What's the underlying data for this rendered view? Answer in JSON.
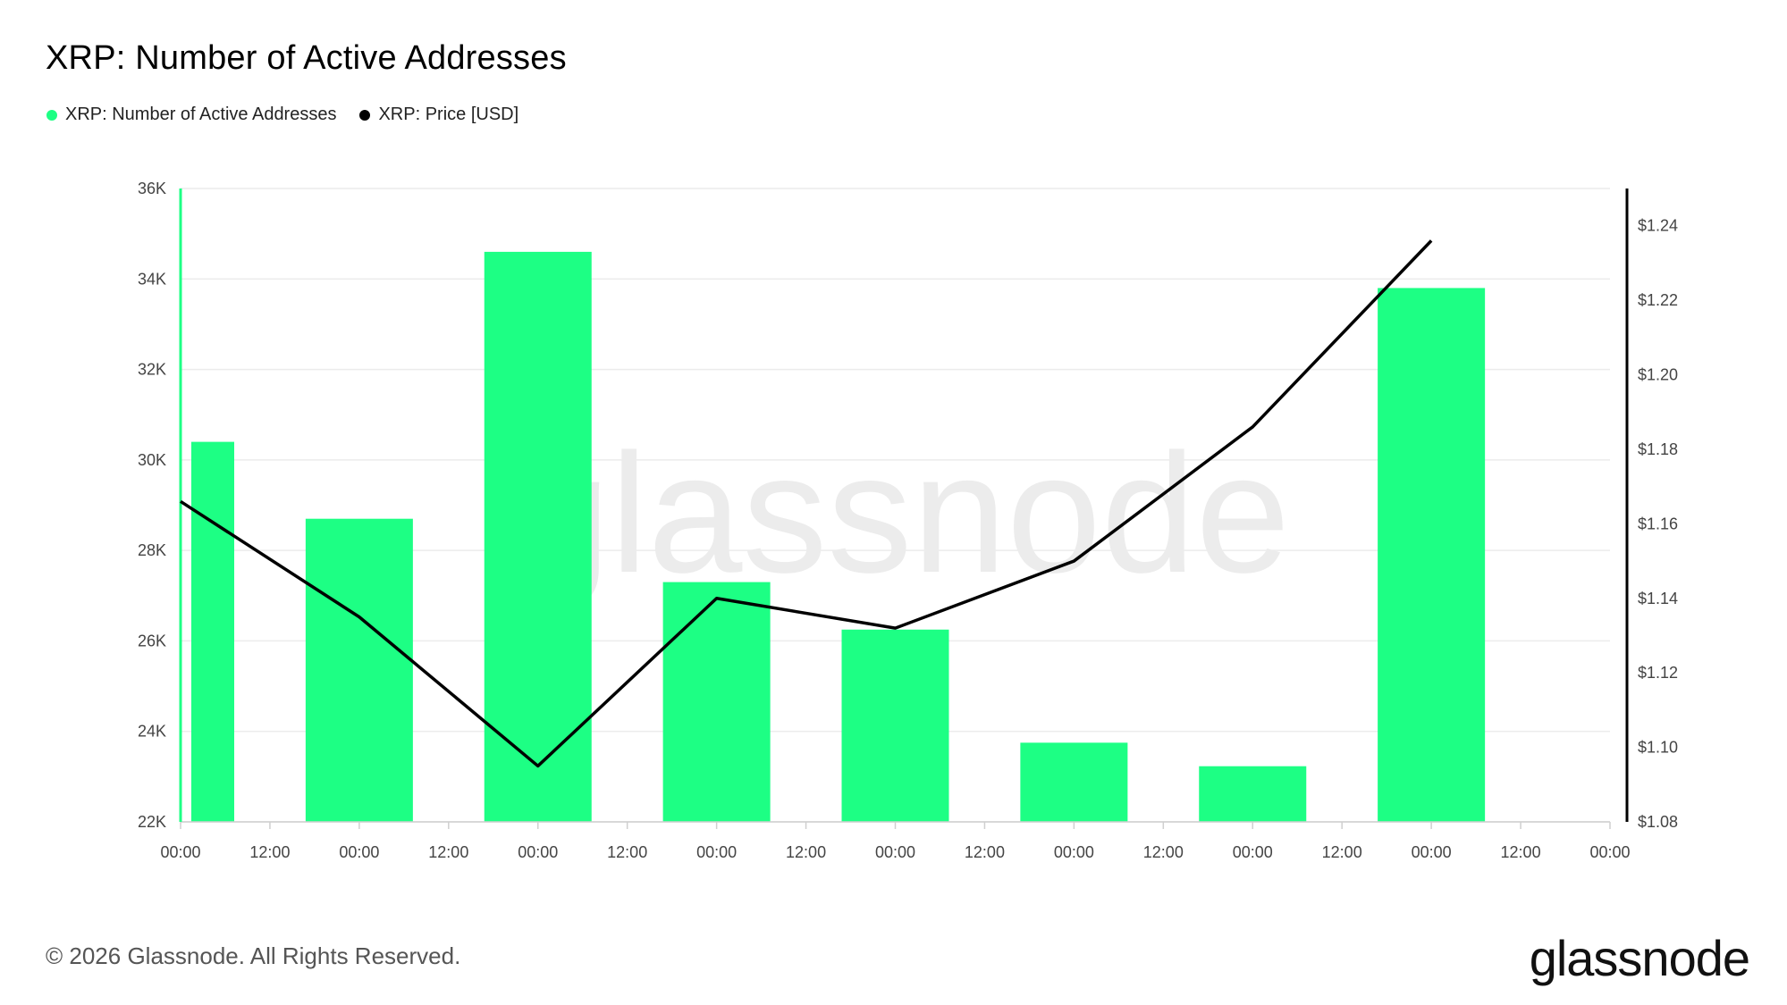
{
  "header": {
    "title": "XRP: Number of Active Addresses"
  },
  "legend": [
    {
      "label": "XRP: Number of Active Addresses",
      "color": "#1dff84"
    },
    {
      "label": "XRP: Price [USD]",
      "color": "#000000"
    }
  ],
  "watermark": "glassnode",
  "footer": {
    "copyright": "© 2026 Glassnode. All Rights Reserved.",
    "brand": "glassnode"
  },
  "chart_data": {
    "type": "bar",
    "title": "XRP: Number of Active Addresses",
    "x_tick_labels": [
      "00:00",
      "12:00",
      "00:00",
      "12:00",
      "00:00",
      "12:00",
      "00:00",
      "12:00",
      "00:00",
      "12:00",
      "00:00",
      "12:00",
      "00:00",
      "12:00",
      "00:00",
      "12:00",
      "00:00"
    ],
    "y_left": {
      "ticks": [
        "22K",
        "24K",
        "26K",
        "28K",
        "30K",
        "32K",
        "34K",
        "36K"
      ],
      "lim": [
        22000,
        36000
      ]
    },
    "y_right": {
      "ticks": [
        "$1.08",
        "$1.10",
        "$1.12",
        "$1.14",
        "$1.16",
        "$1.18",
        "$1.20",
        "$1.22",
        "$1.24"
      ],
      "lim": [
        1.08,
        1.25
      ]
    },
    "grid": true,
    "series": [
      {
        "name": "XRP: Number of Active Addresses",
        "type": "bar",
        "axis": "left",
        "color": "#1dff84",
        "x": [
          0,
          2,
          4,
          6,
          8,
          10,
          12,
          14
        ],
        "values": [
          30400,
          28700,
          34600,
          27300,
          26250,
          23750,
          23230,
          33800
        ]
      },
      {
        "name": "XRP: Price [USD]",
        "type": "line",
        "axis": "right",
        "color": "#000000",
        "x": [
          0,
          2,
          4,
          6,
          8,
          10,
          12,
          14
        ],
        "values": [
          1.166,
          1.135,
          1.095,
          1.14,
          1.132,
          1.15,
          1.186,
          1.236
        ]
      }
    ]
  }
}
